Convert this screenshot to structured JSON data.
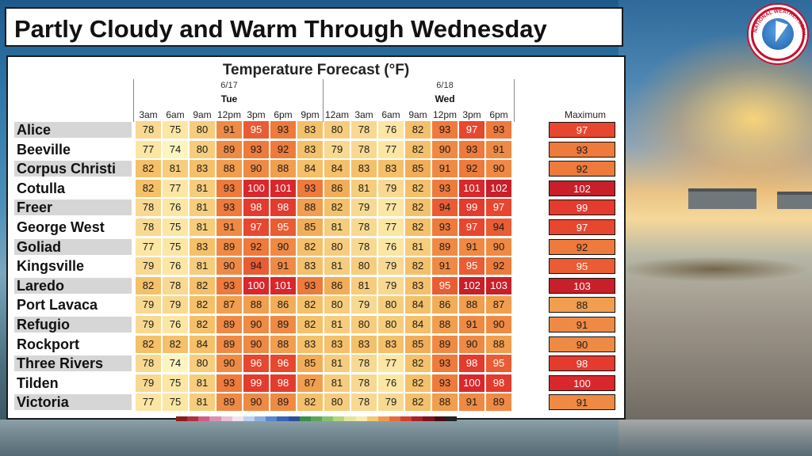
{
  "title": "Partly Cloudy and Warm Through Wednesday",
  "logo": {
    "name": "nws-logo",
    "text": "NATIONAL WEATHER SERVICE"
  },
  "chart_data": {
    "type": "heatmap",
    "title": "Temperature Forecast (°F)",
    "days": [
      {
        "date": "6/17",
        "day": "Tue"
      },
      {
        "date": "6/18",
        "day": "Wed"
      }
    ],
    "hours": [
      "3am",
      "6am",
      "9am",
      "12pm",
      "3pm",
      "6pm",
      "9pm",
      "12am",
      "3am",
      "6am",
      "9am",
      "12pm",
      "3pm",
      "6pm"
    ],
    "max_label": "Maximum",
    "stations": [
      {
        "name": "Alice",
        "values": [
          78,
          75,
          80,
          91,
          95,
          93,
          83,
          80,
          78,
          76,
          82,
          93,
          97,
          93
        ],
        "max": 97
      },
      {
        "name": "Beeville",
        "values": [
          77,
          74,
          80,
          89,
          93,
          92,
          83,
          79,
          78,
          77,
          82,
          90,
          93,
          91
        ],
        "max": 93
      },
      {
        "name": "Corpus Christi",
        "values": [
          82,
          81,
          83,
          88,
          90,
          88,
          84,
          84,
          83,
          83,
          85,
          91,
          92,
          90
        ],
        "max": 92
      },
      {
        "name": "Cotulla",
        "values": [
          82,
          77,
          81,
          93,
          100,
          101,
          93,
          86,
          81,
          79,
          82,
          93,
          101,
          102
        ],
        "max": 102
      },
      {
        "name": "Freer",
        "values": [
          78,
          76,
          81,
          93,
          98,
          98,
          88,
          82,
          79,
          77,
          82,
          94,
          99,
          97
        ],
        "max": 99
      },
      {
        "name": "George West",
        "values": [
          78,
          75,
          81,
          91,
          97,
          95,
          85,
          81,
          78,
          77,
          82,
          93,
          97,
          94
        ],
        "max": 97
      },
      {
        "name": "Goliad",
        "values": [
          77,
          75,
          83,
          89,
          92,
          90,
          82,
          80,
          78,
          76,
          81,
          89,
          91,
          90
        ],
        "max": 92
      },
      {
        "name": "Kingsville",
        "values": [
          79,
          76,
          81,
          90,
          94,
          91,
          83,
          81,
          80,
          79,
          82,
          91,
          95,
          92
        ],
        "max": 95
      },
      {
        "name": "Laredo",
        "values": [
          82,
          78,
          82,
          93,
          100,
          101,
          93,
          86,
          81,
          79,
          83,
          95,
          102,
          103
        ],
        "max": 103
      },
      {
        "name": "Port Lavaca",
        "values": [
          79,
          79,
          82,
          87,
          88,
          86,
          82,
          80,
          79,
          80,
          84,
          86,
          88,
          87
        ],
        "max": 88
      },
      {
        "name": "Refugio",
        "values": [
          79,
          76,
          82,
          89,
          90,
          89,
          82,
          81,
          80,
          80,
          84,
          88,
          91,
          90
        ],
        "max": 91
      },
      {
        "name": "Rockport",
        "values": [
          82,
          82,
          84,
          89,
          90,
          88,
          83,
          83,
          83,
          83,
          85,
          89,
          90,
          88
        ],
        "max": 90
      },
      {
        "name": "Three Rivers",
        "values": [
          78,
          74,
          80,
          90,
          96,
          96,
          85,
          81,
          78,
          77,
          82,
          93,
          98,
          95
        ],
        "max": 98
      },
      {
        "name": "Tilden",
        "values": [
          79,
          75,
          81,
          93,
          99,
          98,
          87,
          81,
          78,
          76,
          82,
          93,
          100,
          98
        ],
        "max": 100
      },
      {
        "name": "Victoria",
        "values": [
          77,
          75,
          81,
          89,
          90,
          89,
          82,
          80,
          78,
          79,
          82,
          88,
          91,
          89
        ],
        "max": 91
      }
    ]
  }
}
